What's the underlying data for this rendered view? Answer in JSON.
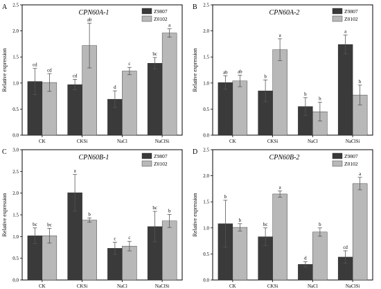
{
  "colors": {
    "Z9807": "#3a3a3a",
    "Z0102": "#b8b8b8",
    "axis": "#000000",
    "error_bar": "#555555"
  },
  "chart_data": [
    {
      "type": "bar",
      "panel_label": "A",
      "title": "CPN60A-1",
      "ylabel": "Relative expression",
      "xlabel": "",
      "ylim": [
        0,
        2.5
      ],
      "yticks": [
        "0.0",
        "0.5",
        "1.0",
        "1.5",
        "2.0",
        "2.5"
      ],
      "categories": [
        "CK",
        "CKSi",
        "NaCl",
        "NaClSi"
      ],
      "legend_position": "top-right",
      "grid": false,
      "series": [
        {
          "name": "Z9807",
          "values": [
            1.03,
            0.97,
            0.69,
            1.38
          ],
          "errors": [
            0.25,
            0.1,
            0.16,
            0.11
          ],
          "letters": [
            "cd",
            "cd",
            "d",
            "bc"
          ]
        },
        {
          "name": "Z0102",
          "values": [
            1.01,
            1.72,
            1.23,
            1.96
          ],
          "errors": [
            0.17,
            0.43,
            0.07,
            0.08
          ],
          "letters": [
            "cd",
            "ab",
            "c",
            "a"
          ]
        }
      ]
    },
    {
      "type": "bar",
      "panel_label": "B",
      "title": "CPN60A-2",
      "ylabel": "Relative expression",
      "xlabel": "",
      "ylim": [
        0,
        2.5
      ],
      "yticks": [
        "0.0",
        "0.5",
        "1.0",
        "1.5",
        "2.0",
        "2.5"
      ],
      "categories": [
        "CK",
        "CKSi",
        "NaCl",
        "NaClSi"
      ],
      "legend_position": "top-right",
      "grid": false,
      "series": [
        {
          "name": "Z9807",
          "values": [
            1.01,
            0.85,
            0.55,
            1.74
          ],
          "errors": [
            0.13,
            0.21,
            0.17,
            0.18
          ],
          "letters": [
            "ab",
            "b",
            "b",
            "a"
          ]
        },
        {
          "name": "Z0102",
          "values": [
            1.04,
            1.64,
            0.45,
            0.77
          ],
          "errors": [
            0.11,
            0.21,
            0.18,
            0.19
          ],
          "letters": [
            "ab",
            "a",
            "b",
            "b"
          ]
        }
      ]
    },
    {
      "type": "bar",
      "panel_label": "C",
      "title": "CPN60B-1",
      "ylabel": "Relative expression",
      "xlabel": "",
      "ylim": [
        0,
        3.0
      ],
      "yticks": [
        "0.0",
        "0.5",
        "1.0",
        "1.5",
        "2.0",
        "2.5",
        "3.0"
      ],
      "categories": [
        "CK",
        "CKSi",
        "NaCl",
        "NaClSi"
      ],
      "legend_position": "top-right",
      "grid": false,
      "series": [
        {
          "name": "Z9807",
          "values": [
            1.02,
            2.01,
            0.73,
            1.23
          ],
          "errors": [
            0.18,
            0.42,
            0.14,
            0.35
          ],
          "letters": [
            "bc",
            "a",
            "c",
            "bc"
          ]
        },
        {
          "name": "Z0102",
          "values": [
            1.02,
            1.38,
            0.78,
            1.36
          ],
          "errors": [
            0.17,
            0.05,
            0.11,
            0.15
          ],
          "letters": [
            "bc",
            "b",
            "c",
            "b"
          ]
        }
      ]
    },
    {
      "type": "bar",
      "panel_label": "D",
      "title": "CPN60B-2",
      "ylabel": "Relative expression",
      "xlabel": "",
      "ylim": [
        0,
        2.5
      ],
      "yticks": [
        "0.0",
        "0.5",
        "1.0",
        "1.5",
        "2.0",
        "2.5"
      ],
      "categories": [
        "CK",
        "CKSi",
        "NaCl",
        "NaClSi"
      ],
      "legend_position": "top-right",
      "grid": false,
      "series": [
        {
          "name": "Z9807",
          "values": [
            1.08,
            0.83,
            0.3,
            0.44
          ],
          "errors": [
            0.45,
            0.17,
            0.05,
            0.12
          ],
          "letters": [
            "b",
            "bc",
            "d",
            "cd"
          ]
        },
        {
          "name": "Z0102",
          "values": [
            1.01,
            1.65,
            0.92,
            1.85
          ],
          "errors": [
            0.07,
            0.06,
            0.08,
            0.12
          ],
          "letters": [
            "b",
            "a",
            "b",
            "a"
          ]
        }
      ]
    }
  ]
}
